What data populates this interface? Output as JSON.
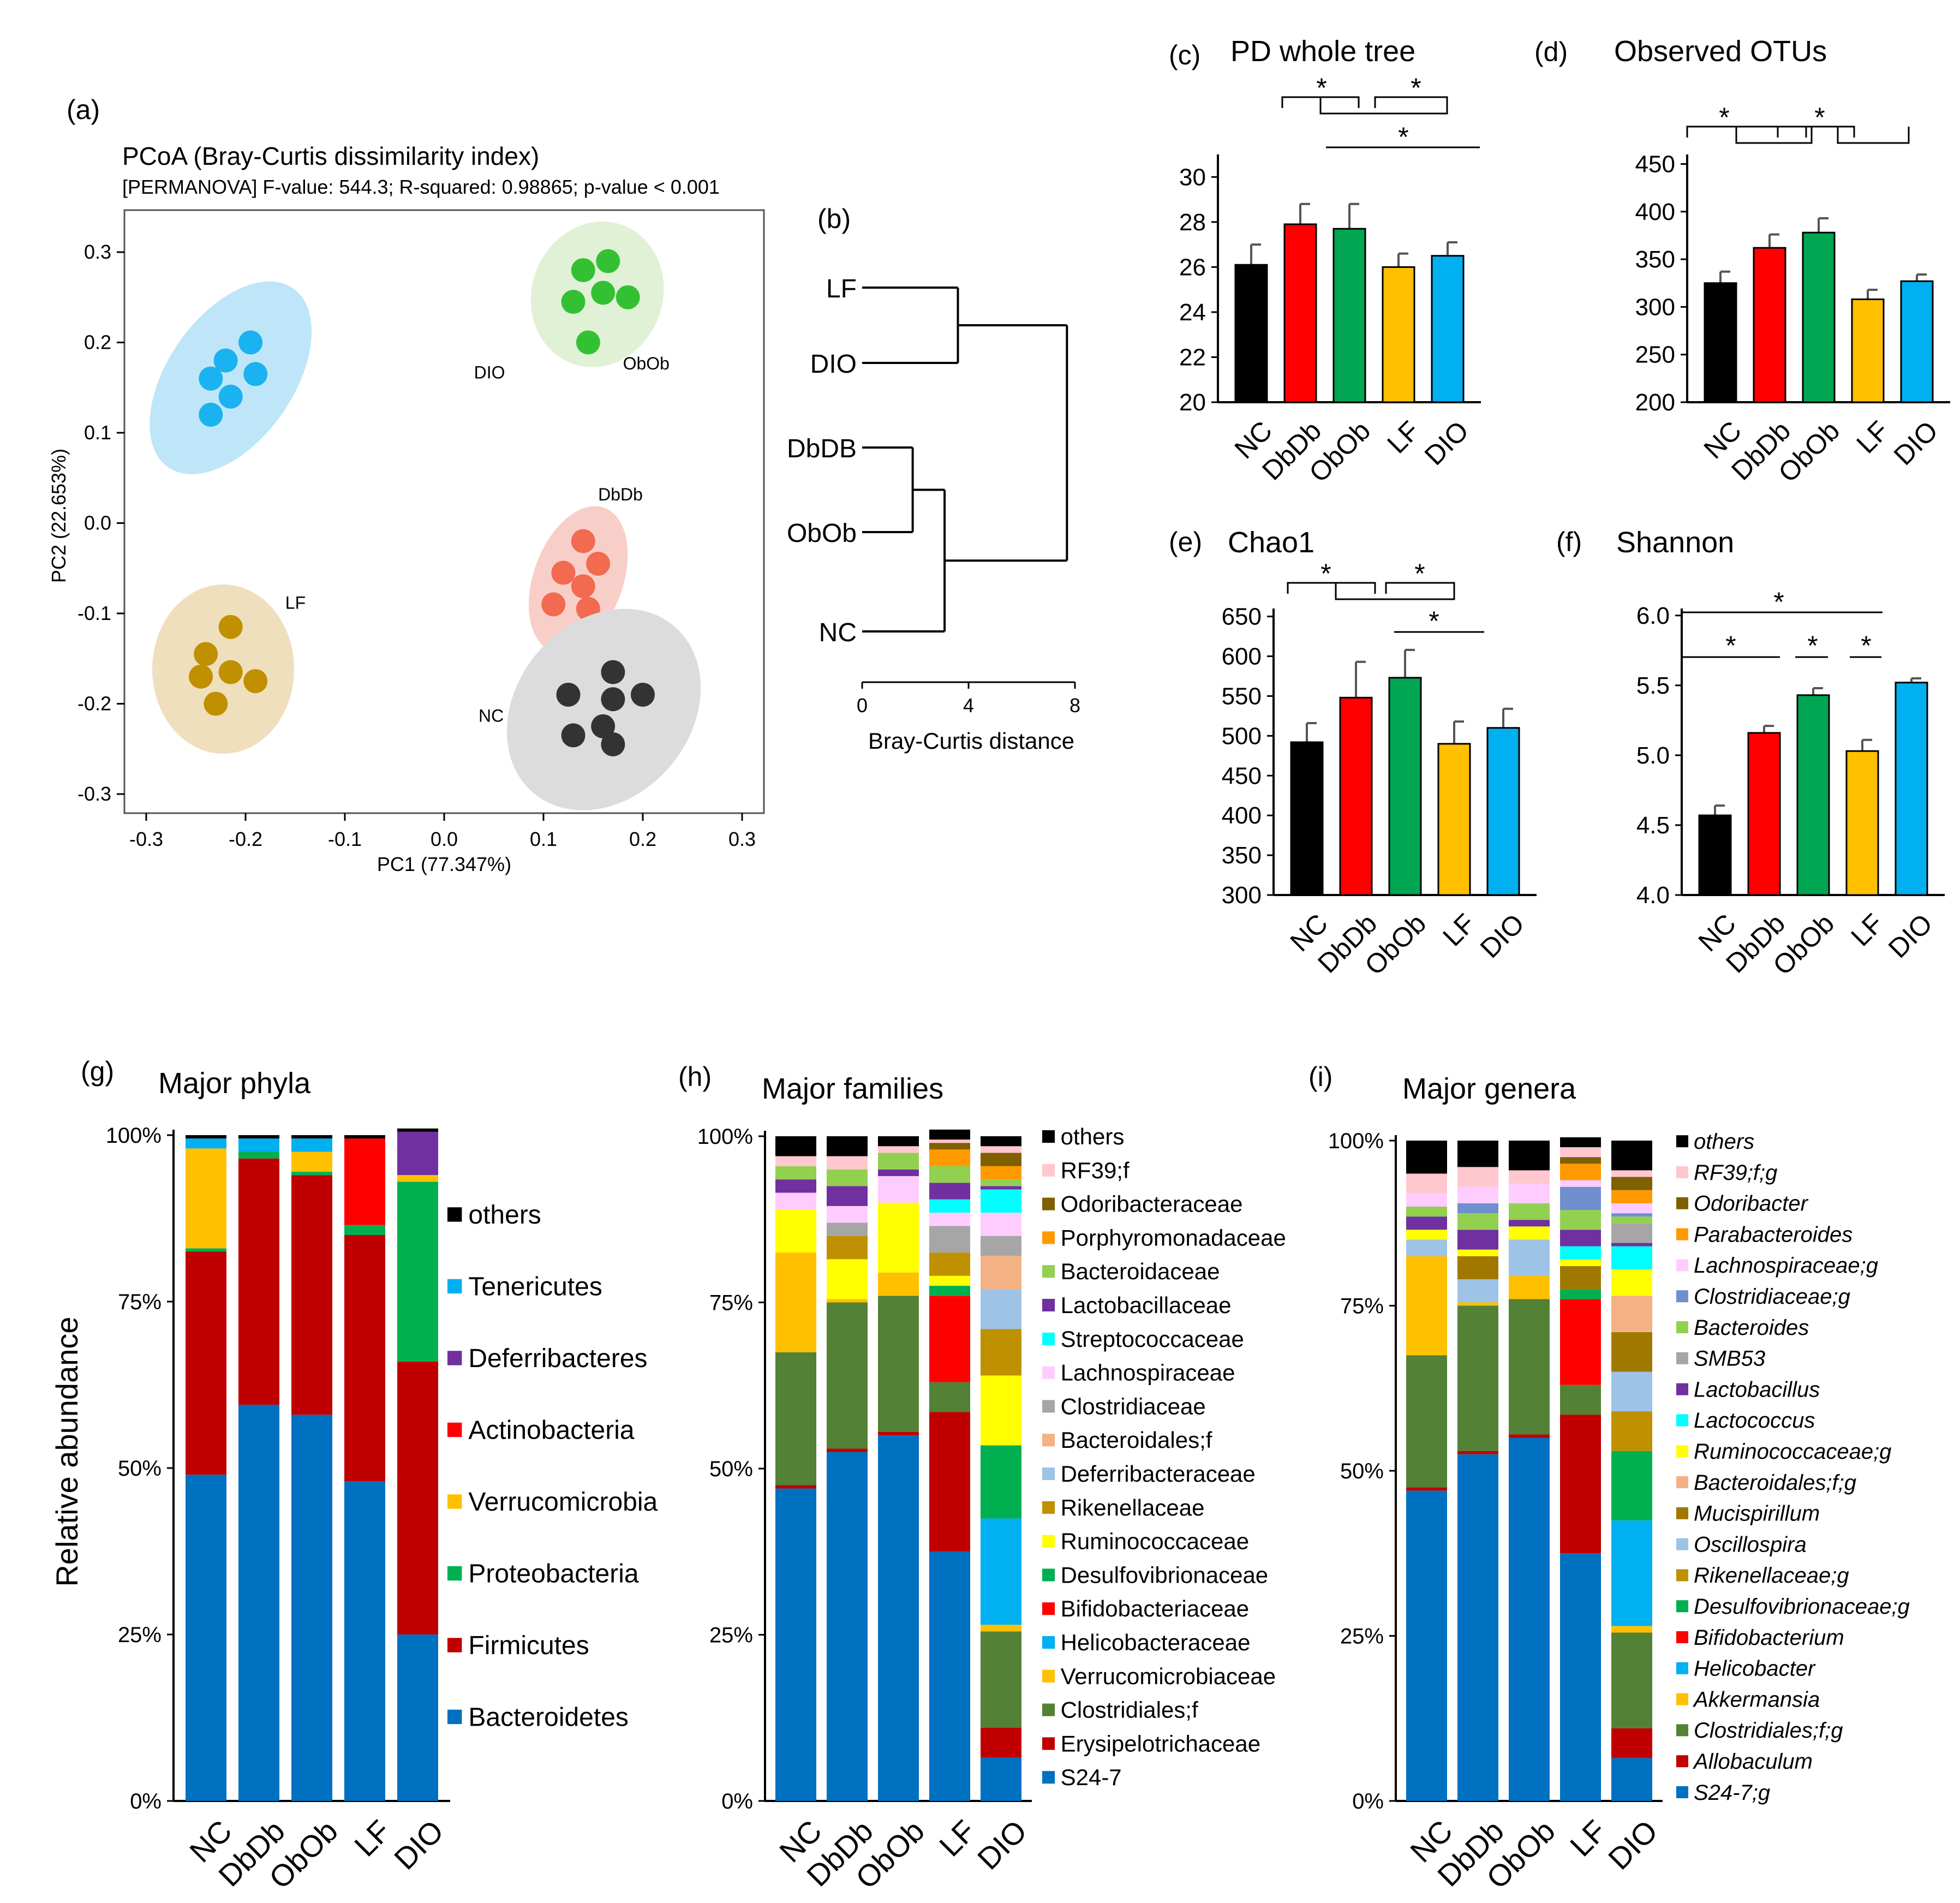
{
  "labels": {
    "a": "(a)",
    "b": "(b)",
    "c": "(c)",
    "d": "(d)",
    "e": "(e)",
    "f": "(f)",
    "g": "(g)",
    "h": "(h)",
    "i": "(i)"
  },
  "colors": {
    "NC": "#000000",
    "DbDb": "#ff0000",
    "ObOb": "#00a651",
    "LF": "#ffc000",
    "DIO": "#00b0f0"
  },
  "chart_data": [
    {
      "id": "a",
      "type": "scatter",
      "title": "PCoA (Bray-Curtis dissimilarity index)",
      "subtitle": "[PERMANOVA] F-value: 544.3; R-squared: 0.98865; p-value < 0.001",
      "xlabel": "PC1 (77.347%)",
      "ylabel": "PC2 (22.653%)",
      "xlim": [
        -0.32,
        0.32
      ],
      "ylim": [
        -0.32,
        0.34
      ],
      "xticks": [
        "-0.3",
        "-0.2",
        "-0.1",
        "0.0",
        "0.1",
        "0.2",
        "0.3"
      ],
      "yticks": [
        "-0.3",
        "-0.2",
        "-0.1",
        "0.0",
        "0.1",
        "0.2",
        "0.3"
      ],
      "series": [
        {
          "name": "DIO",
          "color": "#1ab2f0",
          "ellipse_color": "#bfe6f8",
          "points": [
            [
              -0.22,
              0.18
            ],
            [
              -0.195,
              0.2
            ],
            [
              -0.19,
              0.165
            ],
            [
              -0.235,
              0.16
            ],
            [
              -0.215,
              0.14
            ],
            [
              -0.235,
              0.12
            ]
          ]
        },
        {
          "name": "ObOb",
          "color": "#33c133",
          "ellipse_color": "#e1f1d6",
          "points": [
            [
              0.14,
              0.28
            ],
            [
              0.165,
              0.29
            ],
            [
              0.13,
              0.245
            ],
            [
              0.16,
              0.255
            ],
            [
              0.185,
              0.25
            ],
            [
              0.145,
              0.2
            ]
          ]
        },
        {
          "name": "DbDb",
          "color": "#f26a4f",
          "ellipse_color": "#f8cfc8",
          "points": [
            [
              0.14,
              -0.02
            ],
            [
              0.155,
              -0.045
            ],
            [
              0.12,
              -0.055
            ],
            [
              0.14,
              -0.07
            ],
            [
              0.11,
              -0.09
            ],
            [
              0.145,
              -0.095
            ]
          ]
        },
        {
          "name": "LF",
          "color": "#c09000",
          "ellipse_color": "#efdfbd",
          "points": [
            [
              -0.215,
              -0.115
            ],
            [
              -0.24,
              -0.145
            ],
            [
              -0.215,
              -0.165
            ],
            [
              -0.245,
              -0.17
            ],
            [
              -0.19,
              -0.175
            ],
            [
              -0.23,
              -0.2
            ]
          ]
        },
        {
          "name": "NC",
          "color": "#333333",
          "ellipse_color": "#dcdcdc",
          "points": [
            [
              0.17,
              -0.165
            ],
            [
              0.125,
              -0.19
            ],
            [
              0.17,
              -0.195
            ],
            [
              0.2,
              -0.19
            ],
            [
              0.13,
              -0.235
            ],
            [
              0.16,
              -0.225
            ],
            [
              0.17,
              -0.245
            ]
          ]
        }
      ]
    },
    {
      "id": "b",
      "type": "dendrogram",
      "xlabel": "Bray-Curtis distance",
      "xticks": [
        "0",
        "4",
        "8"
      ],
      "xlim": [
        0,
        8
      ],
      "leaves": [
        "LF",
        "DIO",
        "DbDB",
        "ObOb",
        "NC"
      ],
      "merges": [
        {
          "left": "LF",
          "right": "DIO",
          "height": 3.6
        },
        {
          "left": "DbDB",
          "right": "ObOb",
          "height": 1.9
        },
        {
          "left": "DbDB+ObOb",
          "right": "NC",
          "height": 3.1
        },
        {
          "left": "LF+DIO",
          "right": "DbDB+ObOb+NC",
          "height": 7.7
        }
      ]
    },
    {
      "id": "c",
      "type": "bar",
      "title": "PD whole tree",
      "categories": [
        "NC",
        "DbDb",
        "ObOb",
        "LF",
        "DIO"
      ],
      "values": [
        26.1,
        27.9,
        27.7,
        26.0,
        26.5
      ],
      "errors": [
        0.9,
        0.9,
        1.1,
        0.6,
        0.6
      ],
      "ylim": [
        20,
        31
      ],
      "yticks": [
        "20",
        "22",
        "24",
        "26",
        "28",
        "30"
      ],
      "sig": "*"
    },
    {
      "id": "d",
      "type": "bar",
      "title": "Observed OTUs",
      "categories": [
        "NC",
        "DbDb",
        "ObOb",
        "LF",
        "DIO"
      ],
      "values": [
        325,
        362,
        378,
        308,
        327
      ],
      "errors": [
        12,
        14,
        15,
        10,
        7
      ],
      "ylim": [
        200,
        460
      ],
      "yticks": [
        "200",
        "250",
        "300",
        "350",
        "400",
        "450"
      ],
      "sig": "*"
    },
    {
      "id": "e",
      "type": "bar",
      "title": "Chao1",
      "categories": [
        "NC",
        "DbDb",
        "ObOb",
        "LF",
        "DIO"
      ],
      "values": [
        492,
        548,
        573,
        490,
        510
      ],
      "errors": [
        24,
        45,
        35,
        28,
        24
      ],
      "ylim": [
        300,
        660
      ],
      "yticks": [
        "300",
        "350",
        "400",
        "450",
        "500",
        "550",
        "600",
        "650"
      ],
      "sig": "*"
    },
    {
      "id": "f",
      "type": "bar",
      "title": "Shannon",
      "categories": [
        "NC",
        "DbDb",
        "ObOb",
        "LF",
        "DIO"
      ],
      "values": [
        4.57,
        5.16,
        5.43,
        5.03,
        5.52
      ],
      "errors": [
        0.07,
        0.05,
        0.05,
        0.08,
        0.03
      ],
      "ylim": [
        4.0,
        6.05
      ],
      "yticks": [
        "4.0",
        "4.5",
        "5.0",
        "5.5",
        "6.0"
      ],
      "sig": "*"
    },
    {
      "id": "g",
      "type": "stacked_bar",
      "title": "Major phyla",
      "ylabel": "Relative abundance",
      "yticks": [
        "0%",
        "25%",
        "50%",
        "75%",
        "100%"
      ],
      "categories": [
        "NC",
        "DbDb",
        "ObOb",
        "LF",
        "DIO"
      ],
      "series": [
        {
          "name": "Bacteroidetes",
          "color": "#0070c0",
          "values": [
            49,
            59.5,
            58,
            48,
            25
          ]
        },
        {
          "name": "Firmicutes",
          "color": "#c00000",
          "values": [
            33.5,
            37,
            36,
            37,
            41
          ]
        },
        {
          "name": "Proteobacteria",
          "color": "#00b050",
          "values": [
            0.5,
            1,
            0.5,
            1.5,
            27
          ]
        },
        {
          "name": "Verrucomicrobia",
          "color": "#ffc000",
          "values": [
            15,
            0,
            3,
            0,
            1
          ]
        },
        {
          "name": "Actinobacteria",
          "color": "#ff0000",
          "values": [
            0,
            0,
            0,
            13,
            0
          ]
        },
        {
          "name": "Deferribacteres",
          "color": "#7030a0",
          "values": [
            0,
            0,
            0,
            0,
            6.5
          ]
        },
        {
          "name": "Tenericutes",
          "color": "#00b0f0",
          "values": [
            1.5,
            2,
            2,
            0,
            0
          ]
        },
        {
          "name": "others",
          "color": "#000000",
          "values": [
            0.5,
            0.5,
            0.5,
            0.5,
            0.5
          ]
        }
      ]
    },
    {
      "id": "h",
      "type": "stacked_bar",
      "title": "Major families",
      "yticks": [
        "0%",
        "25%",
        "50%",
        "75%",
        "100%"
      ],
      "categories": [
        "NC",
        "DbDb",
        "ObOb",
        "LF",
        "DIO"
      ],
      "series": [
        {
          "name": "S24-7",
          "color": "#0070c0",
          "values": [
            47,
            52.5,
            55,
            37.5,
            6.5
          ]
        },
        {
          "name": "Erysipelotrichaceae",
          "color": "#c00000",
          "values": [
            0.5,
            0.5,
            0.5,
            21,
            4.5
          ]
        },
        {
          "name": "Clostridiales;f",
          "color": "#538135",
          "values": [
            20,
            22,
            20.5,
            4.5,
            14.5
          ]
        },
        {
          "name": "Verrucomicrobiaceae",
          "color": "#ffc000",
          "values": [
            15,
            0.5,
            3.5,
            0,
            1
          ]
        },
        {
          "name": "Helicobacteraceae",
          "color": "#00b0f0",
          "values": [
            0,
            0,
            0,
            0,
            16
          ]
        },
        {
          "name": "Bifidobacteriaceae",
          "color": "#ff0000",
          "values": [
            0,
            0,
            0,
            13,
            0
          ]
        },
        {
          "name": "Desulfovibrionaceae",
          "color": "#00b050",
          "values": [
            0,
            0,
            0,
            1.5,
            11
          ]
        },
        {
          "name": "Ruminococcaceae",
          "color": "#ffff00",
          "values": [
            6.5,
            6,
            10.5,
            1.5,
            10.5
          ]
        },
        {
          "name": "Rikenellaceae",
          "color": "#bf9000",
          "values": [
            0,
            3.5,
            0,
            3.5,
            7
          ]
        },
        {
          "name": "Deferribacteraceae",
          "color": "#9dc3e6",
          "values": [
            0,
            0,
            0,
            0,
            6
          ]
        },
        {
          "name": "Bacteroidales;f",
          "color": "#f4b183",
          "values": [
            0,
            0,
            0,
            0,
            5
          ]
        },
        {
          "name": "Clostridiaceae",
          "color": "#a6a6a6",
          "values": [
            0,
            2,
            0,
            4,
            3
          ]
        },
        {
          "name": "Lachnospiraceae",
          "color": "#ffccff",
          "values": [
            2.5,
            2.5,
            4,
            2,
            3.5
          ]
        },
        {
          "name": "Streptococcaceae",
          "color": "#00ffff",
          "values": [
            0,
            0,
            0,
            2,
            3.5
          ]
        },
        {
          "name": "Lactobacillaceae",
          "color": "#7030a0",
          "values": [
            2,
            3,
            1,
            2.5,
            0.5
          ]
        },
        {
          "name": "Bacteroidaceae",
          "color": "#92d050",
          "values": [
            2,
            2.5,
            2.5,
            2.5,
            1
          ]
        },
        {
          "name": "Porphyromonadaceae",
          "color": "#ff9900",
          "values": [
            0,
            0,
            0,
            2.5,
            2
          ]
        },
        {
          "name": "Odoribacteraceae",
          "color": "#7f6000",
          "values": [
            0,
            0,
            0,
            1,
            2
          ]
        },
        {
          "name": "RF39;f",
          "color": "#ffc7ce",
          "values": [
            1.5,
            2,
            1,
            0.5,
            1
          ]
        },
        {
          "name": "others",
          "color": "#000000",
          "values": [
            3,
            3,
            1.5,
            1.5,
            1.5
          ]
        }
      ]
    },
    {
      "id": "i",
      "type": "stacked_bar",
      "title": "Major genera",
      "yticks": [
        "0%",
        "25%",
        "50%",
        "75%",
        "100%"
      ],
      "categories": [
        "NC",
        "DbDb",
        "ObOb",
        "LF",
        "DIO"
      ],
      "series": [
        {
          "name": "S24-7;g",
          "color": "#0070c0",
          "values": [
            47,
            52.5,
            55,
            37.5,
            6.5
          ]
        },
        {
          "name": "Allobaculum",
          "color": "#c00000",
          "values": [
            0.5,
            0.5,
            0.5,
            21,
            4.5
          ]
        },
        {
          "name": "Clostridiales;f;g",
          "color": "#538135",
          "values": [
            20,
            22,
            20.5,
            4.5,
            14.5
          ]
        },
        {
          "name": "Akkermansia",
          "color": "#ffc000",
          "values": [
            15,
            0.5,
            3.5,
            0,
            1
          ]
        },
        {
          "name": "Helicobacter",
          "color": "#00b0f0",
          "values": [
            0,
            0,
            0,
            0,
            16
          ]
        },
        {
          "name": "Bifidobacterium",
          "color": "#ff0000",
          "values": [
            0,
            0,
            0,
            13,
            0
          ]
        },
        {
          "name": "Desulfovibrionaceae;g",
          "color": "#00b050",
          "values": [
            0,
            0,
            0,
            1.5,
            10.5
          ]
        },
        {
          "name": "Rikenellaceae;g",
          "color": "#bf9000",
          "values": [
            0,
            0,
            0,
            0,
            6
          ]
        },
        {
          "name": "Oscillospira",
          "color": "#9dc3e6",
          "values": [
            2.5,
            3.5,
            5.5,
            0,
            6
          ]
        },
        {
          "name": "Mucispirillum",
          "color": "#a07800",
          "values": [
            0,
            3.5,
            0,
            3.5,
            6
          ]
        },
        {
          "name": "Bacteroidales;f;g",
          "color": "#f4b183",
          "values": [
            0,
            0,
            0,
            0,
            5.5
          ]
        },
        {
          "name": "Ruminococcaceae;g",
          "color": "#ffff00",
          "values": [
            1.5,
            1,
            2,
            1,
            4
          ]
        },
        {
          "name": "Lactococcus",
          "color": "#00ffff",
          "values": [
            0,
            0,
            0,
            2,
            3.5
          ]
        },
        {
          "name": "Lactobacillus",
          "color": "#7030a0",
          "values": [
            2,
            3,
            1,
            2.5,
            0.5
          ]
        },
        {
          "name": "SMB53",
          "color": "#a6a6a6",
          "values": [
            0,
            0,
            0,
            0,
            3
          ]
        },
        {
          "name": "Bacteroides",
          "color": "#92d050",
          "values": [
            1.5,
            2.5,
            2.5,
            3,
            1
          ]
        },
        {
          "name": "Clostridiaceae;g",
          "color": "#6f8fcf",
          "values": [
            0,
            1.5,
            0,
            3.5,
            0.5
          ]
        },
        {
          "name": "Lachnospiraceae;g",
          "color": "#ffccff",
          "values": [
            2,
            2.5,
            3,
            1,
            1.5
          ]
        },
        {
          "name": "Parabacteroides",
          "color": "#ff9900",
          "values": [
            0,
            0,
            0,
            2.5,
            2
          ]
        },
        {
          "name": "Odoribacter",
          "color": "#7f6000",
          "values": [
            0,
            0,
            0,
            1,
            2
          ]
        },
        {
          "name": "RF39;f;g",
          "color": "#ffc7ce",
          "values": [
            3,
            3,
            2,
            1.5,
            1
          ]
        },
        {
          "name": "others",
          "color": "#000000",
          "values": [
            5,
            4,
            4.5,
            1.5,
            4.5
          ]
        }
      ]
    }
  ]
}
